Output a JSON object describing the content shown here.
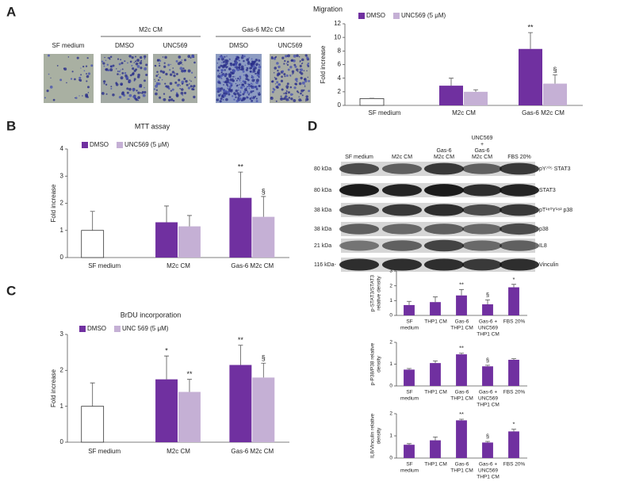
{
  "chart_data": [
    {
      "type": "bar",
      "title": "Migration",
      "ylabel": "Fold increase",
      "categories": [
        "SF medium",
        "M2c CM",
        "Gas-6 M2c CM"
      ],
      "series": [
        {
          "name": "DMSO",
          "color": "#7030a0",
          "bar_colors": [
            "#ffffff",
            "#7030a0",
            "#7030a0"
          ],
          "values": [
            1,
            2.9,
            8.3
          ],
          "errors": [
            0.05,
            1.1,
            2.4
          ],
          "annotations": [
            null,
            null,
            "**"
          ]
        },
        {
          "name": "UNC569 (5 μM)",
          "color": "#c5b0d5",
          "values": [
            null,
            2.0,
            3.2
          ],
          "errors": [
            null,
            0.3,
            1.3
          ],
          "annotations": [
            null,
            null,
            "§"
          ]
        }
      ],
      "ylim": [
        0,
        12
      ],
      "yticks": [
        0,
        2,
        4,
        6,
        8,
        10,
        12
      ]
    },
    {
      "type": "bar",
      "title": "MTT assay",
      "ylabel": "Fold increase",
      "categories": [
        "SF medium",
        "M2c CM",
        "Gas-6 M2c CM"
      ],
      "series": [
        {
          "name": "DMSO",
          "color": "#7030a0",
          "bar_colors": [
            "#ffffff",
            "#7030a0",
            "#7030a0"
          ],
          "values": [
            1,
            1.3,
            2.2
          ],
          "errors": [
            0.7,
            0.6,
            0.95
          ],
          "annotations": [
            null,
            null,
            "**"
          ]
        },
        {
          "name": "UNC569 (5 μM)",
          "color": "#c5b0d5",
          "values": [
            null,
            1.15,
            1.5
          ],
          "errors": [
            null,
            0.4,
            0.75
          ],
          "annotations": [
            null,
            null,
            "§"
          ]
        }
      ],
      "ylim": [
        0,
        4
      ],
      "yticks": [
        0,
        1,
        2,
        3,
        4
      ]
    },
    {
      "type": "bar",
      "title": "BrDU incorporation",
      "ylabel": "Fold increase",
      "categories": [
        "SF medium",
        "M2c CM",
        "Gas-6 M2c CM"
      ],
      "series": [
        {
          "name": "DMSO",
          "color": "#7030a0",
          "bar_colors": [
            "#ffffff",
            "#7030a0",
            "#7030a0"
          ],
          "values": [
            1,
            1.75,
            2.15
          ],
          "errors": [
            0.65,
            0.65,
            0.55
          ],
          "annotations": [
            null,
            "*",
            "**"
          ]
        },
        {
          "name": "UNC 569 (5 μM)",
          "color": "#c5b0d5",
          "values": [
            null,
            1.4,
            1.8
          ],
          "errors": [
            null,
            0.35,
            0.4
          ],
          "annotations": [
            null,
            "**",
            "§"
          ]
        }
      ],
      "ylim": [
        0,
        3
      ],
      "yticks": [
        0,
        1,
        2,
        3
      ]
    },
    {
      "type": "bar",
      "ylabel": [
        "p-STAT3/STAT3",
        "relative density"
      ],
      "categories": [
        [
          "SF",
          "medium"
        ],
        [
          "THP1 CM"
        ],
        [
          "Gas-6",
          "THP1 CM"
        ],
        [
          "Gas-6 +",
          "UNC569",
          "THP1 CM"
        ],
        [
          "FBS 20%"
        ]
      ],
      "series": [
        {
          "color": "#7030a0",
          "values": [
            0.7,
            0.9,
            1.35,
            0.75,
            1.9
          ],
          "errors": [
            0.25,
            0.35,
            0.4,
            0.3,
            0.2
          ],
          "annotations": [
            null,
            null,
            "**",
            "§",
            "*"
          ]
        }
      ],
      "ylim": [
        0,
        3
      ],
      "yticks": [
        0,
        1,
        2,
        3
      ]
    },
    {
      "type": "bar",
      "ylabel": [
        "p-P38/P38 relative",
        "density"
      ],
      "categories": [
        [
          "SF",
          "medium"
        ],
        [
          "THP1 CM"
        ],
        [
          "Gas-6",
          "THP1 CM"
        ],
        [
          "Gas-6 +",
          "UNC569",
          "THP1 CM"
        ],
        [
          "FBS 20%"
        ]
      ],
      "series": [
        {
          "color": "#7030a0",
          "values": [
            0.75,
            1.05,
            1.45,
            0.9,
            1.2
          ],
          "errors": [
            0.05,
            0.1,
            0.05,
            0.05,
            0.05
          ],
          "annotations": [
            null,
            null,
            "**",
            "§",
            null
          ]
        }
      ],
      "ylim": [
        0,
        2
      ],
      "yticks": [
        0,
        1,
        2
      ]
    },
    {
      "type": "bar",
      "ylabel": [
        "IL8/Vinculin relative",
        "density"
      ],
      "categories": [
        [
          "SF",
          "medium"
        ],
        [
          "THP1 CM"
        ],
        [
          "Gas-6",
          "THP1 CM"
        ],
        [
          "Gas-6 +",
          "UNC569",
          "THP1 CM"
        ],
        [
          "FBS 20%"
        ]
      ],
      "series": [
        {
          "color": "#7030a0",
          "values": [
            0.6,
            0.8,
            1.7,
            0.7,
            1.2
          ],
          "errors": [
            0.05,
            0.15,
            0.05,
            0.05,
            0.1
          ],
          "annotations": [
            null,
            null,
            "**",
            "§",
            "*"
          ]
        }
      ],
      "ylim": [
        0,
        2
      ],
      "yticks": [
        0,
        1,
        2
      ]
    }
  ],
  "figure": {
    "panel_labels": [
      "A",
      "B",
      "C",
      "D"
    ],
    "micrographs": {
      "single": "SF medium",
      "groups": [
        {
          "label": "M2c CM",
          "sub": [
            "DMSO",
            "UNC569"
          ]
        },
        {
          "label": "Gas-6 M2c CM",
          "sub": [
            "DMSO",
            "UNC569"
          ]
        }
      ]
    },
    "blot": {
      "columns": [
        [
          "SF medium"
        ],
        [
          "M2c CM"
        ],
        [
          "Gas-6",
          "M2c  CM"
        ],
        [
          "UNC569",
          "+",
          "Gas-6",
          "M2c  CM"
        ],
        [
          "FBS 20%"
        ]
      ],
      "rows": [
        {
          "kda": "80 kDa",
          "protein": "pY⁷⁰⁵ STAT3"
        },
        {
          "kda": "80 kDa",
          "protein": "STAT3"
        },
        {
          "kda": "38 kDa",
          "protein": "pT¹⁸⁰Y¹⁸² p38"
        },
        {
          "kda": "38 kDa",
          "protein": "p38"
        },
        {
          "kda": "21 kDa",
          "protein": "IL8"
        },
        {
          "kda": "116 kDa-",
          "protein": "Vinculin"
        }
      ]
    }
  }
}
